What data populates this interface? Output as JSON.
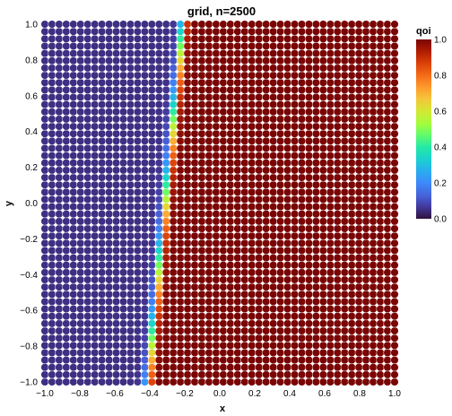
{
  "chart_data": {
    "type": "scatter",
    "title": "grid, n=2500",
    "xlabel": "x",
    "ylabel": "y",
    "xlim": [
      -1.0,
      1.0
    ],
    "ylim": [
      -1.0,
      1.0
    ],
    "grid_points_per_axis": 50,
    "xticks": [
      "−1.0",
      "−0.8",
      "−0.6",
      "−0.4",
      "−0.2",
      "0.0",
      "0.2",
      "0.4",
      "0.6",
      "0.8",
      "1.0"
    ],
    "yticks": [
      "−1.0",
      "−0.8",
      "−0.6",
      "−0.4",
      "−0.2",
      "0.0",
      "0.2",
      "0.4",
      "0.6",
      "0.8",
      "1.0"
    ],
    "xtick_values": [
      -1.0,
      -0.8,
      -0.6,
      -0.4,
      -0.2,
      0.0,
      0.2,
      0.4,
      0.6,
      0.8,
      1.0
    ],
    "ytick_values": [
      -1.0,
      -0.8,
      -0.6,
      -0.4,
      -0.2,
      0.0,
      0.2,
      0.4,
      0.6,
      0.8,
      1.0
    ],
    "color_variable": "qoi",
    "colormap": "turbo",
    "color_range": [
      0.0,
      1.0
    ],
    "colorbar": {
      "title": "qoi",
      "tick_values": [
        0.0,
        0.2,
        0.4,
        0.6,
        0.8,
        1.0
      ],
      "tick_labels": [
        "0.0",
        "0.2",
        "0.4",
        "0.6",
        "0.8",
        "1.0"
      ],
      "placement": "right"
    },
    "qoi_field": {
      "description_of_pattern": "low (~0.05) for x left of a sharp transition, high (~1.0) to the right",
      "transition_x_at_y_min": -0.41,
      "transition_x_at_y_max": -0.21,
      "low_value": 0.05,
      "high_value": 1.0,
      "transition_width": 0.05
    },
    "grid": false,
    "background": "#ffffff",
    "marker_edge_color": "#ffffff"
  }
}
